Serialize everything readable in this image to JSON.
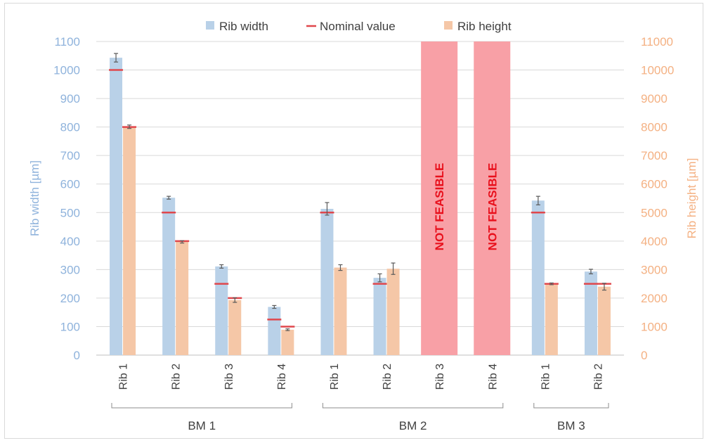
{
  "chart_data": {
    "type": "bar",
    "legend": {
      "placement": "top",
      "entries": [
        {
          "label": "Rib width",
          "color": "#b9d1e8"
        },
        {
          "label": "Nominal value",
          "color": "#e0474c"
        },
        {
          "label": "Rib height",
          "color": "#f5c7a7"
        }
      ]
    },
    "y_left": {
      "label": "Rib width [µm]",
      "range": [
        0,
        1100
      ],
      "ticks": [
        0,
        100,
        200,
        300,
        400,
        500,
        600,
        700,
        800,
        900,
        1000,
        1100
      ],
      "color": "#8fb3dc"
    },
    "y_right": {
      "label": "Rib height [µm]",
      "range": [
        0,
        11000
      ],
      "ticks": [
        0,
        1000,
        2000,
        3000,
        4000,
        5000,
        6000,
        7000,
        8000,
        9000,
        10000,
        11000
      ],
      "color": "#f4b183"
    },
    "grid": true,
    "groups": [
      {
        "label": "BM 1",
        "start": 0,
        "end": 3
      },
      {
        "label": "BM 2",
        "start": 4,
        "end": 7
      },
      {
        "label": "BM 3",
        "start": 8,
        "end": 9
      }
    ],
    "categories": [
      "Rib 1",
      "Rib 2",
      "Rib 3",
      "Rib 4",
      "Rib 1",
      "Rib 2",
      "Rib 3",
      "Rib 4",
      "Rib 1",
      "Rib 2"
    ],
    "series": [
      {
        "name": "Rib width",
        "axis": "left",
        "color": "#b9d1e8",
        "values": [
          1043,
          552,
          311,
          169,
          513,
          271,
          null,
          null,
          542,
          293
        ],
        "errors": [
          15,
          5,
          6,
          5,
          22,
          14,
          null,
          null,
          15,
          8
        ],
        "nominal": [
          1000,
          500,
          250,
          125,
          500,
          250,
          null,
          null,
          500,
          250
        ]
      },
      {
        "name": "Rib height",
        "axis": "right",
        "color": "#f5c7a7",
        "values": [
          8010,
          3970,
          1930,
          890,
          3070,
          3030,
          null,
          null,
          2500,
          2400
        ],
        "errors": [
          60,
          40,
          80,
          30,
          100,
          200,
          null,
          null,
          30,
          120
        ],
        "nominal": [
          8000,
          4000,
          2000,
          1000,
          null,
          null,
          null,
          null,
          2500,
          2500
        ]
      }
    ],
    "annotations": [
      {
        "category_index": 6,
        "text": "NOT FEASIBLE",
        "color": "#f8a0a6",
        "text_color": "#e8101c"
      },
      {
        "category_index": 7,
        "text": "NOT FEASIBLE",
        "color": "#f8a0a6",
        "text_color": "#e8101c"
      }
    ]
  }
}
